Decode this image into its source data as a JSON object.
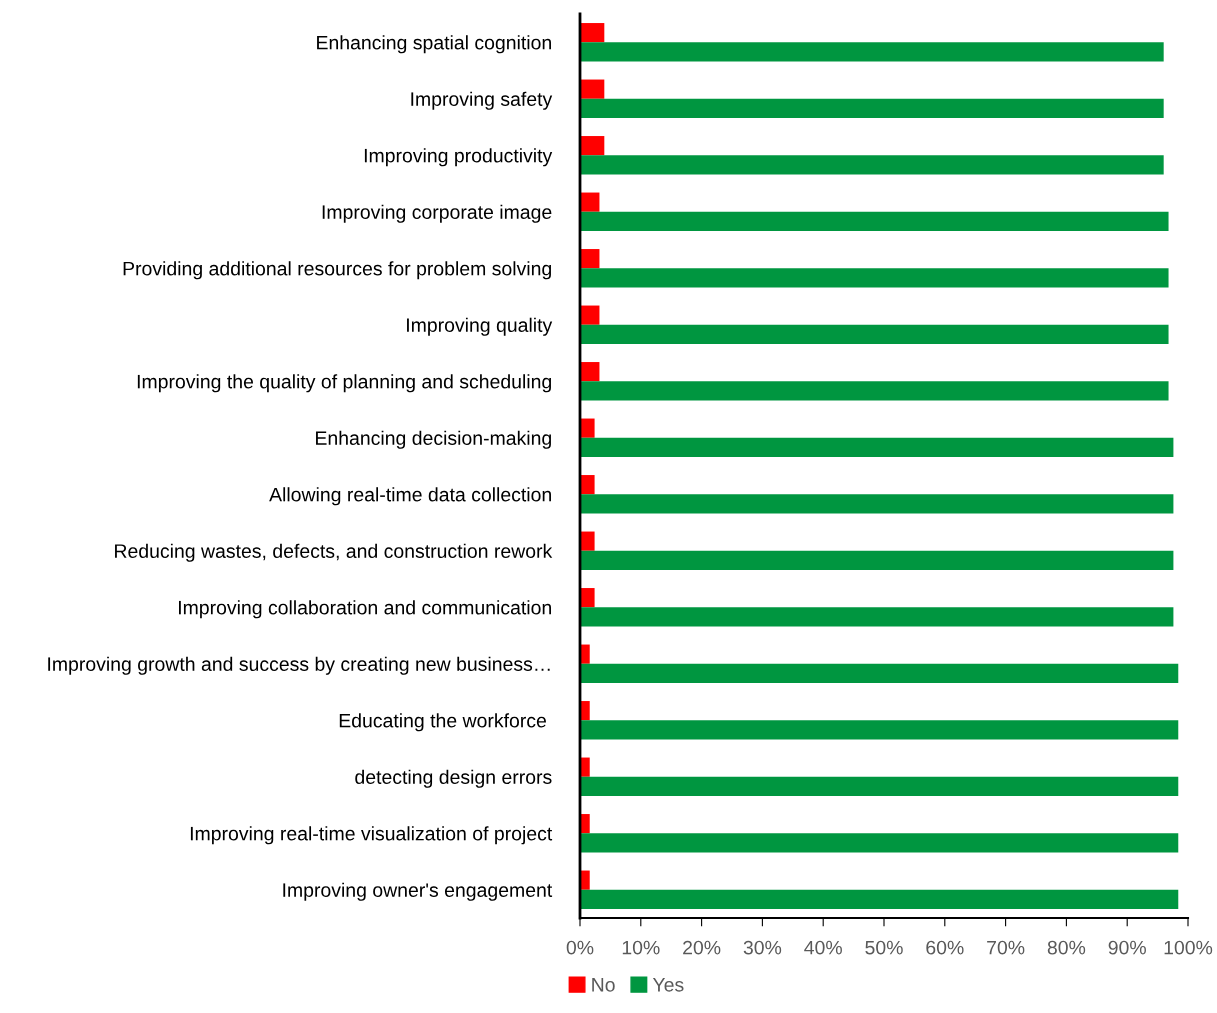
{
  "chart_data": {
    "type": "bar",
    "orientation": "horizontal",
    "categories": [
      "Enhancing spatial cognition",
      "Improving safety",
      "Improving productivity",
      "Improving corporate image",
      "Providing additional resources for problem solving",
      "Improving quality",
      "Improving the quality of planning and scheduling",
      "Enhancing decision-making",
      "Allowing real-time data collection",
      "Reducing wastes, defects, and construction rework",
      "Improving collaboration and communication",
      "Improving growth and success by creating new business…",
      "Educating the workforce ",
      "detecting design errors",
      "Improving real-time visualization of project",
      "Improving owner's engagement"
    ],
    "series": [
      {
        "name": "No",
        "color": "#ff0000",
        "values": [
          4,
          4,
          4,
          3.2,
          3.2,
          3.2,
          3.2,
          2.4,
          2.4,
          2.4,
          2.4,
          1.6,
          1.6,
          1.6,
          1.6,
          1.6
        ]
      },
      {
        "name": "Yes",
        "color": "#009640",
        "values": [
          96,
          96,
          96,
          96.8,
          96.8,
          96.8,
          96.8,
          97.6,
          97.6,
          97.6,
          97.6,
          98.4,
          98.4,
          98.4,
          98.4,
          98.4
        ]
      }
    ],
    "xlim": [
      0,
      100
    ],
    "xticks": [
      {
        "value": 0,
        "label": "0%"
      },
      {
        "value": 10,
        "label": "10%"
      },
      {
        "value": 20,
        "label": "20%"
      },
      {
        "value": 30,
        "label": "30%"
      },
      {
        "value": 40,
        "label": "40%"
      },
      {
        "value": 50,
        "label": "50%"
      },
      {
        "value": 60,
        "label": "60%"
      },
      {
        "value": 70,
        "label": "70%"
      },
      {
        "value": 80,
        "label": "80%"
      },
      {
        "value": 90,
        "label": "90%"
      },
      {
        "value": 100,
        "label": "100%"
      }
    ],
    "grid": false,
    "legend": "bottom"
  }
}
